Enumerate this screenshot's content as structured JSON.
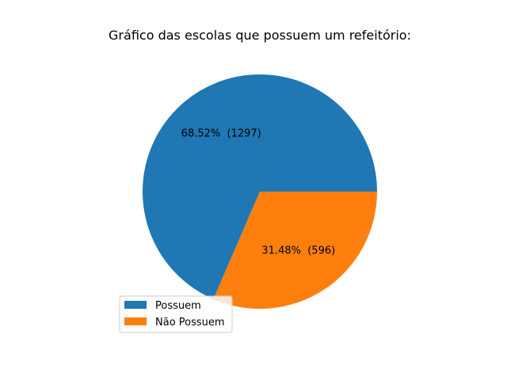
{
  "chart_data": {
    "type": "pie",
    "title": "Gráfico das escolas que possuem um refeitório:",
    "slices": [
      {
        "label": "Possuem",
        "value": 1297,
        "percent": 68.52,
        "display": "68.52%  (1297)",
        "color": "#1f77b4"
      },
      {
        "label": "Não Possuem",
        "value": 596,
        "percent": 31.48,
        "display": "31.48%  (596)",
        "color": "#ff7f0e"
      }
    ],
    "start_angle_deg": 0,
    "direction": "counterclockwise",
    "legend": {
      "placement": "lower-left",
      "entries": [
        "Possuem",
        "Não Possuem"
      ]
    }
  }
}
